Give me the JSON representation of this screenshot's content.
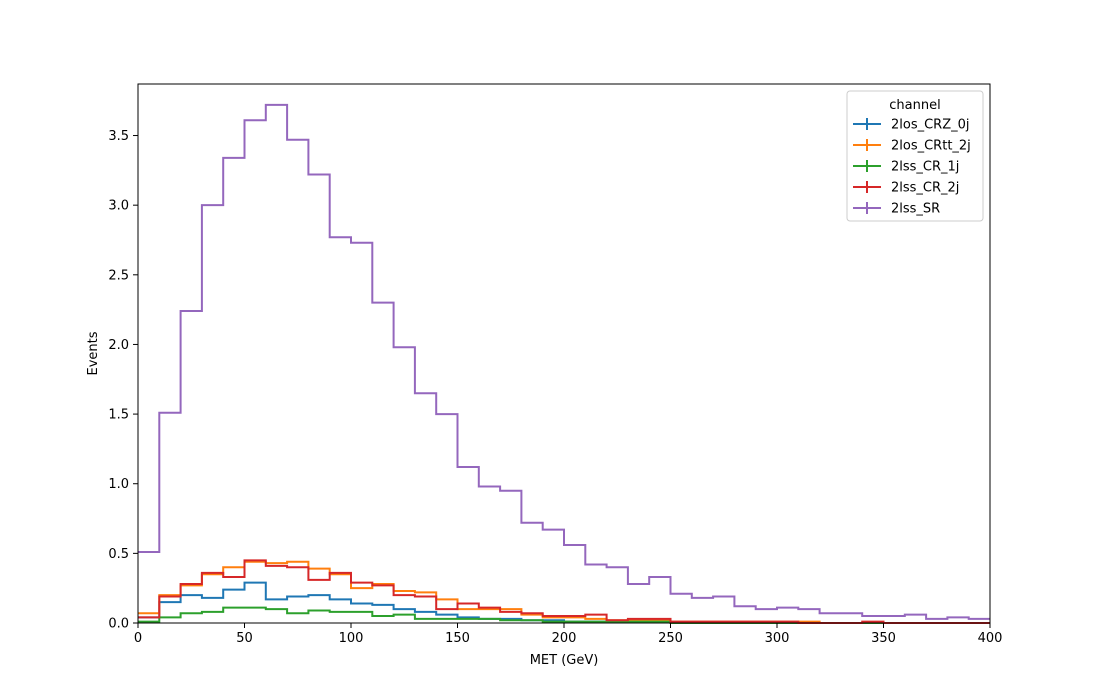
{
  "chart_data": {
    "type": "step histogram",
    "xlabel": "MET (GeV)",
    "ylabel": "Events",
    "xlim": [
      0,
      400
    ],
    "ylim": [
      0,
      3.87
    ],
    "x_ticks": [
      0,
      50,
      100,
      150,
      200,
      250,
      300,
      350,
      400
    ],
    "y_ticks": [
      0.0,
      0.5,
      1.0,
      1.5,
      2.0,
      2.5,
      3.0,
      3.5
    ],
    "bin_edges": [
      0,
      10,
      20,
      30,
      40,
      50,
      60,
      70,
      80,
      90,
      100,
      110,
      120,
      130,
      140,
      150,
      160,
      170,
      180,
      190,
      200,
      210,
      220,
      230,
      240,
      250,
      260,
      270,
      280,
      290,
      300,
      310,
      320,
      330,
      340,
      350,
      360,
      370,
      380,
      390,
      400
    ],
    "grid": false,
    "legend": {
      "title": "channel",
      "position": "top-right"
    },
    "series": [
      {
        "name": "2los_CRZ_0j",
        "color": "#1f77b4",
        "values": [
          0.04,
          0.15,
          0.2,
          0.18,
          0.24,
          0.29,
          0.17,
          0.19,
          0.2,
          0.17,
          0.14,
          0.13,
          0.1,
          0.08,
          0.06,
          0.04,
          0.03,
          0.03,
          0.02,
          0.02,
          0.01,
          0.01,
          0.01,
          0.01,
          0.01,
          0.0,
          0.0,
          0.0,
          0.0,
          0.0,
          0.0,
          0.0,
          0.0,
          0.0,
          0.0,
          0.0,
          0.0,
          0.0,
          0.0,
          0.0
        ]
      },
      {
        "name": "2los_CRtt_2j",
        "color": "#ff7f0e",
        "values": [
          0.07,
          0.2,
          0.27,
          0.35,
          0.4,
          0.44,
          0.43,
          0.44,
          0.39,
          0.35,
          0.25,
          0.28,
          0.23,
          0.22,
          0.17,
          0.1,
          0.1,
          0.1,
          0.06,
          0.04,
          0.04,
          0.03,
          0.02,
          0.02,
          0.02,
          0.01,
          0.01,
          0.01,
          0.01,
          0.01,
          0.01,
          0.01,
          0.0,
          0.0,
          0.0,
          0.0,
          0.0,
          0.0,
          0.0,
          0.0
        ]
      },
      {
        "name": "2lss_CR_1j",
        "color": "#2ca02c",
        "values": [
          0.01,
          0.04,
          0.07,
          0.08,
          0.11,
          0.11,
          0.1,
          0.07,
          0.09,
          0.08,
          0.08,
          0.05,
          0.06,
          0.03,
          0.03,
          0.03,
          0.03,
          0.02,
          0.02,
          0.01,
          0.01,
          0.01,
          0.01,
          0.01,
          0.01,
          0.0,
          0.0,
          0.0,
          0.0,
          0.0,
          0.0,
          0.0,
          0.0,
          0.0,
          0.0,
          0.0,
          0.0,
          0.0,
          0.0,
          0.0
        ]
      },
      {
        "name": "2lss_CR_2j",
        "color": "#d62728",
        "values": [
          0.04,
          0.19,
          0.28,
          0.36,
          0.33,
          0.45,
          0.41,
          0.4,
          0.31,
          0.36,
          0.29,
          0.27,
          0.2,
          0.19,
          0.1,
          0.14,
          0.11,
          0.08,
          0.07,
          0.05,
          0.05,
          0.06,
          0.02,
          0.03,
          0.03,
          0.01,
          0.01,
          0.01,
          0.01,
          0.01,
          0.01,
          0.0,
          0.0,
          0.0,
          0.01,
          0.0,
          0.0,
          0.0,
          0.0,
          0.0
        ]
      },
      {
        "name": "2lss_SR",
        "color": "#9467bd",
        "values": [
          0.51,
          1.51,
          2.24,
          3.0,
          3.34,
          3.61,
          3.72,
          3.47,
          3.22,
          2.77,
          2.73,
          2.3,
          1.98,
          1.65,
          1.5,
          1.12,
          0.98,
          0.95,
          0.72,
          0.67,
          0.56,
          0.42,
          0.4,
          0.28,
          0.33,
          0.21,
          0.18,
          0.19,
          0.12,
          0.1,
          0.11,
          0.1,
          0.07,
          0.07,
          0.05,
          0.05,
          0.06,
          0.03,
          0.04,
          0.03
        ]
      }
    ]
  }
}
